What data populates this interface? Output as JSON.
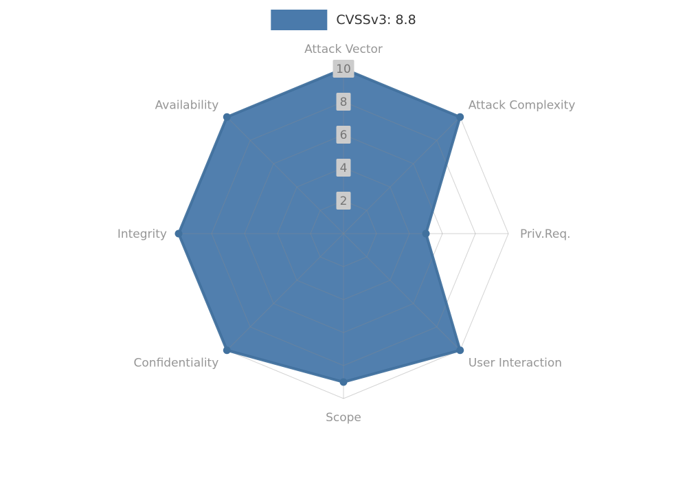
{
  "legend": {
    "label": "CVSSv3: 8.8",
    "swatch_color": "#4a7aab"
  },
  "chart_data": {
    "type": "radar",
    "title": "CVSSv3: 8.8",
    "axes": [
      "Attack Vector",
      "Attack Complexity",
      "Priv.Req.",
      "User Interaction",
      "Scope",
      "Confidentiality",
      "Integrity",
      "Availability"
    ],
    "series": [
      {
        "name": "CVSSv3: 8.8",
        "values": [
          10,
          10,
          5,
          10,
          9,
          10,
          10,
          10
        ],
        "fill_color": "#4a7aab",
        "line_color": "#41719e"
      }
    ],
    "ring_values": [
      2,
      4,
      6,
      8,
      10
    ],
    "max": 10,
    "axis_start": "top",
    "direction": "clockwise",
    "grid": "on",
    "grid_color": "#8c8c8c",
    "axis_name_color": "#969696",
    "tick_bg_color": "#cccccc",
    "tick_text_color": "#757575",
    "legend_position": "top-center"
  }
}
